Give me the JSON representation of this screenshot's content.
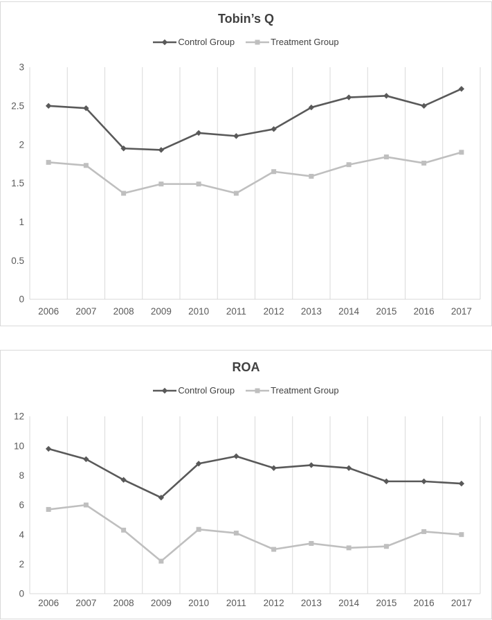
{
  "colors": {
    "panel_border": "#d9d9d9",
    "gridline": "#d9d9d9",
    "axis_line": "#d9d9d9",
    "tick_label": "#595959",
    "title_text": "#404040",
    "control_series": "#595959",
    "treatment_series": "#bfbfbf"
  },
  "chart_data": [
    {
      "type": "line",
      "title": "Tobin’s Q",
      "xlabel": "",
      "ylabel": "",
      "grid": "vertical",
      "legend_position": "top",
      "ylim": [
        0,
        3
      ],
      "ytick_step": 0.5,
      "categories": [
        "2006",
        "2007",
        "2008",
        "2009",
        "2010",
        "2011",
        "2012",
        "2013",
        "2014",
        "2015",
        "2016",
        "2017"
      ],
      "series": [
        {
          "name": "Control Group",
          "marker": "diamond",
          "color": "#595959",
          "values": [
            2.5,
            2.47,
            1.95,
            1.93,
            2.15,
            2.11,
            2.2,
            2.48,
            2.61,
            2.63,
            2.5,
            2.72
          ]
        },
        {
          "name": "Treatment Group",
          "marker": "square",
          "color": "#bfbfbf",
          "values": [
            1.77,
            1.73,
            1.37,
            1.49,
            1.49,
            1.37,
            1.65,
            1.59,
            1.74,
            1.84,
            1.76,
            1.9
          ]
        }
      ]
    },
    {
      "type": "line",
      "title": "ROA",
      "xlabel": "",
      "ylabel": "",
      "grid": "vertical",
      "legend_position": "top",
      "ylim": [
        0,
        12
      ],
      "ytick_step": 2,
      "categories": [
        "2006",
        "2007",
        "2008",
        "2009",
        "2010",
        "2011",
        "2012",
        "2013",
        "2014",
        "2015",
        "2016",
        "2017"
      ],
      "series": [
        {
          "name": "Control Group",
          "marker": "diamond",
          "color": "#595959",
          "values": [
            9.8,
            9.1,
            7.7,
            6.5,
            8.8,
            9.3,
            8.5,
            8.7,
            8.5,
            7.6,
            7.6,
            7.45
          ]
        },
        {
          "name": "Treatment Group",
          "marker": "square",
          "color": "#bfbfbf",
          "values": [
            5.7,
            6.0,
            4.3,
            2.2,
            4.35,
            4.1,
            3.0,
            3.4,
            3.1,
            3.2,
            4.2,
            4.0
          ]
        }
      ]
    }
  ]
}
